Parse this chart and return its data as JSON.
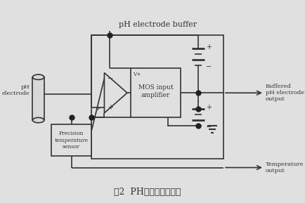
{
  "title": "图2  PH电极缓冲器电路",
  "top_label": "pH electrode buffer",
  "right_label_top": "Buffered\npH electrode\noutput",
  "right_label_bottom": "Temperature\noutput",
  "left_label": "pH\nelectrode",
  "bg_color": "#e8e8e8",
  "line_color": "#333333",
  "box_color": "#cccccc",
  "font_color": "#222222"
}
